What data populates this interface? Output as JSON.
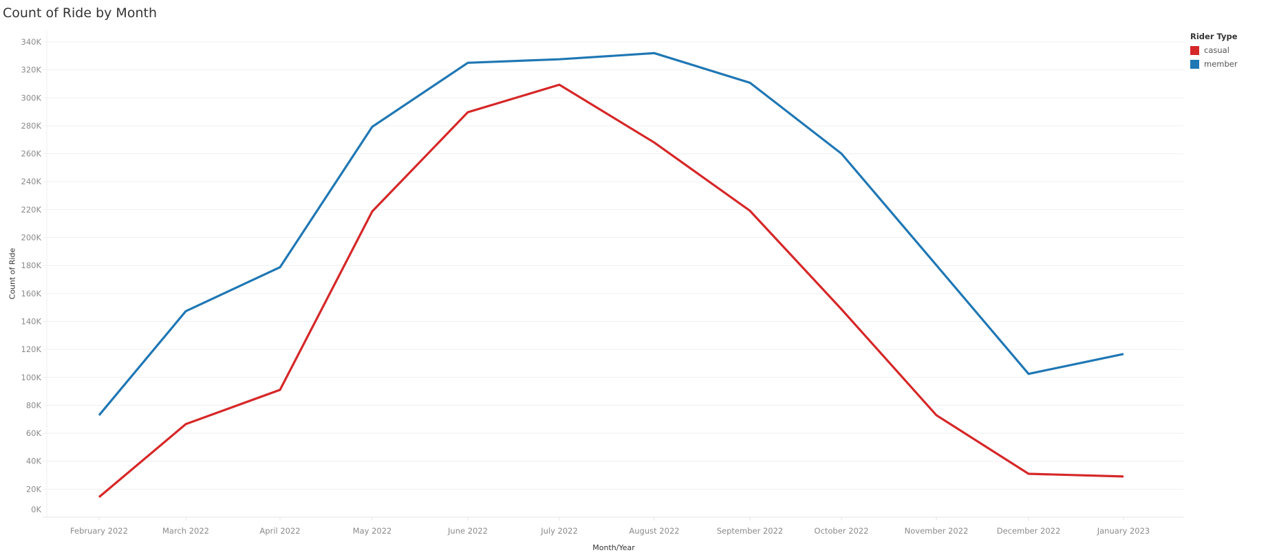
{
  "title": "Count of Ride by Month",
  "legend": {
    "title": "Rider Type",
    "items": [
      {
        "label": "casual",
        "color": "#d62728"
      },
      {
        "label": "member",
        "color": "#1f77b4"
      }
    ]
  },
  "axes": {
    "x_title": "Month/Year",
    "y_title": "Count of Ride"
  },
  "chart_data": {
    "type": "line",
    "title": "Count of Ride by Month",
    "xlabel": "Month/Year",
    "ylabel": "Count of Ride",
    "categories": [
      "February 2022",
      "March 2022",
      "April 2022",
      "May 2022",
      "June 2022",
      "July 2022",
      "August 2022",
      "September 2022",
      "October 2022",
      "November 2022",
      "December 2022",
      "January 2023"
    ],
    "series": [
      {
        "name": "casual",
        "color": "#d62728",
        "values": [
          14300,
          66500,
          91100,
          218700,
          289700,
          309400,
          268000,
          219200,
          148800,
          72900,
          31000,
          29100
        ]
      },
      {
        "name": "member",
        "color": "#1f77b4",
        "values": [
          72900,
          147300,
          178800,
          279300,
          325100,
          327600,
          332000,
          310800,
          260100,
          180300,
          102500,
          116700
        ]
      }
    ],
    "yticks": [
      "0K",
      "20K",
      "40K",
      "60K",
      "80K",
      "100K",
      "120K",
      "140K",
      "160K",
      "180K",
      "200K",
      "220K",
      "240K",
      "260K",
      "280K",
      "300K",
      "320K",
      "340K"
    ],
    "ylim": [
      0,
      340000
    ],
    "grid": true,
    "legend_position": "right"
  }
}
